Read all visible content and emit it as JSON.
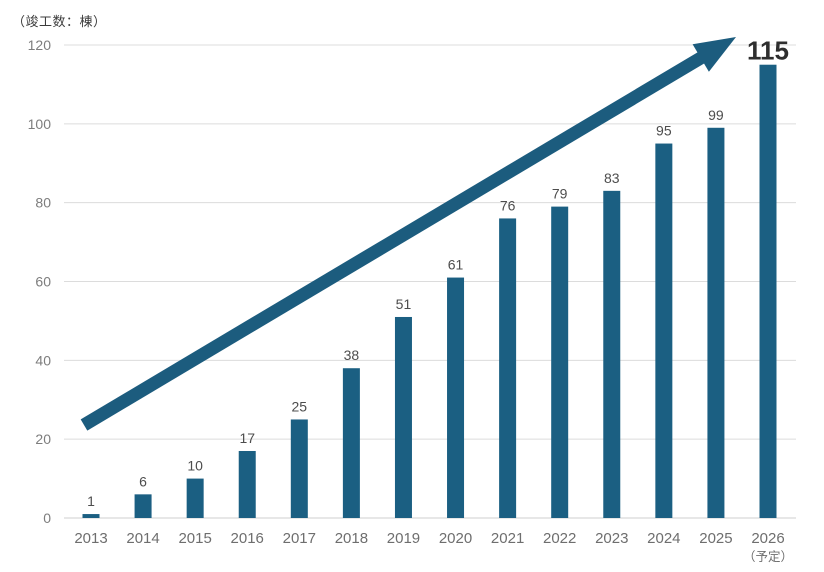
{
  "chart_data": {
    "type": "bar",
    "title": "（竣工数：棟）",
    "ylabel": "竣工数（棟）",
    "xlabel": "",
    "categories": [
      "2013",
      "2014",
      "2015",
      "2016",
      "2017",
      "2018",
      "2019",
      "2020",
      "2021",
      "2022",
      "2023",
      "2024",
      "2025",
      "2026"
    ],
    "last_category_note": "（予定）",
    "values": [
      1,
      6,
      10,
      17,
      25,
      38,
      51,
      61,
      76,
      79,
      83,
      95,
      99,
      115
    ],
    "yticks": [
      0,
      20,
      40,
      60,
      80,
      100,
      120
    ],
    "ylim": [
      0,
      120
    ],
    "grid": true,
    "legend": "none",
    "highlight_last_value": true,
    "colors": {
      "bar": "#1b5f82",
      "arrow": "#1c5c7e",
      "gridline": "#dcdcdc",
      "axis_line": "#cfcfcf",
      "value_label": "#4d4d4d",
      "highlight_label": "#2e2e2e",
      "tick_label": "#7d7d7d",
      "x_label": "#6e6e6e",
      "title": "#3c3c3c"
    }
  }
}
